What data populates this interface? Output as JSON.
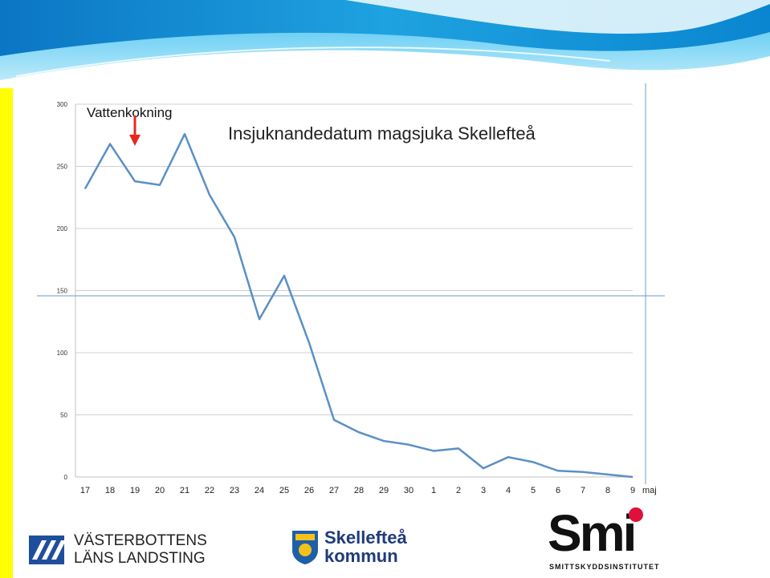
{
  "chart_data": {
    "type": "line",
    "title": "Insjuknandedatum magsjuka Skellefteå",
    "xlabel_suffix": "maj",
    "categories": [
      "17",
      "18",
      "19",
      "20",
      "21",
      "22",
      "23",
      "24",
      "25",
      "26",
      "27",
      "28",
      "29",
      "30",
      "1",
      "2",
      "3",
      "4",
      "5",
      "6",
      "7",
      "8",
      "9"
    ],
    "series": [
      {
        "values": [
          232,
          268,
          238,
          235,
          276,
          227,
          193,
          127,
          162,
          108,
          46,
          36,
          29,
          26,
          21,
          23,
          7,
          16,
          12,
          5,
          4,
          2,
          0
        ]
      }
    ],
    "ylim": [
      0,
      300
    ],
    "yticks": [
      "0",
      "50",
      "100",
      "150",
      "200",
      "250",
      "300"
    ],
    "grid": true,
    "annotation": {
      "text": "Vattenkokning",
      "category": "19"
    },
    "colors": {
      "line": "#5b8fc7",
      "grid": "#d0d0d0",
      "arrow": "#e8281e",
      "axis": "#c0c0c0"
    }
  },
  "logos": {
    "landsting": {
      "line1": "VÄSTERBOTTENS",
      "line2": "LÄNS LANDSTING"
    },
    "kommun": {
      "line1": "Skellefteå",
      "line2": "kommun"
    },
    "smi": {
      "mark": "Smi",
      "subtitle": "SMITTSKYDDSINSTITUTET"
    }
  }
}
